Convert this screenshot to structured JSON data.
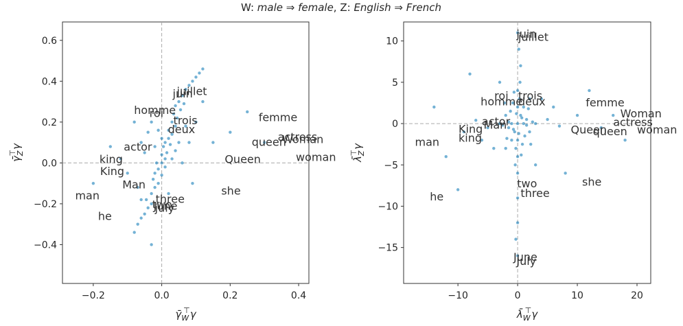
{
  "title": [
    "W: ",
    "male ⇒ female",
    ", Z: ",
    "English ⇒ French"
  ],
  "chart_data": [
    {
      "type": "scatter",
      "xlabel": {
        "base": "γ̄",
        "sub": "W",
        "sup": "⊤",
        "tail": "γ"
      },
      "ylabel": {
        "base": "γ̄",
        "sub": "Z",
        "sup": "⊤",
        "tail": "γ"
      },
      "xlim": [
        -0.29,
        0.43
      ],
      "ylim": [
        -0.59,
        0.69
      ],
      "xticks": [
        {
          "value": -0.2,
          "label": "−0.2"
        },
        {
          "value": 0,
          "label": "0.0"
        },
        0.2,
        0.4
      ],
      "yticks": [
        {
          "value": -0.4,
          "label": "−0.4"
        },
        {
          "value": -0.2,
          "label": "−0.2"
        },
        {
          "value": 0,
          "label": "0.0"
        },
        0.2,
        0.4,
        0.6
      ],
      "reflines": {
        "x": 0,
        "y": 0
      },
      "color": "#0173b2",
      "x": [
        -0.08,
        -0.07,
        -0.06,
        -0.05,
        -0.04,
        -0.045,
        -0.03,
        -0.03,
        -0.02,
        -0.025,
        -0.02,
        -0.01,
        -0.01,
        -0.015,
        0.0,
        0.0,
        0.0,
        0.005,
        0.01,
        0.01,
        0.015,
        0.02,
        0.02,
        0.025,
        0.03,
        0.03,
        0.035,
        0.04,
        0.04,
        0.045,
        0.05,
        0.055,
        0.06,
        0.065,
        0.07,
        0.08,
        0.09,
        0.1,
        0.11,
        0.12,
        -0.03,
        -0.04,
        -0.06,
        0.08,
        0.1,
        0.06,
        -0.1,
        -0.12,
        0.15,
        0.2,
        -0.15,
        0.25,
        0.3,
        -0.2,
        0.02,
        -0.05,
        0.05,
        0.0,
        -0.02,
        0.03,
        -0.01,
        0.01,
        0.04,
        -0.07,
        0.07,
        -0.03,
        -0.06,
        0.12,
        -0.08,
        0.09
      ],
      "y": [
        -0.34,
        -0.3,
        -0.27,
        -0.25,
        -0.22,
        -0.18,
        -0.2,
        -0.15,
        -0.12,
        -0.08,
        -0.05,
        -0.1,
        -0.03,
        0.0,
        -0.06,
        0.0,
        0.04,
        0.08,
        0.02,
        0.1,
        0.05,
        0.12,
        0.16,
        0.09,
        0.2,
        0.14,
        0.24,
        0.18,
        0.28,
        0.22,
        0.3,
        0.26,
        0.33,
        0.29,
        0.36,
        0.38,
        0.4,
        0.42,
        0.44,
        0.46,
        0.2,
        0.15,
        0.1,
        0.1,
        0.2,
        0.0,
        -0.05,
        0.02,
        0.1,
        0.15,
        0.08,
        0.25,
        0.1,
        -0.1,
        -0.15,
        0.05,
        0.1,
        0.12,
        0.08,
        0.02,
        0.16,
        -0.02,
        0.06,
        -0.12,
        0.18,
        -0.4,
        -0.18,
        0.3,
        0.2,
        -0.1
      ],
      "annotations": [
        {
          "text": "juillet",
          "x": 0.044,
          "y": 0.333
        },
        {
          "text": "juin",
          "x": 0.032,
          "y": 0.32
        },
        {
          "text": "homme",
          "x": -0.081,
          "y": 0.239
        },
        {
          "text": "roi",
          "x": -0.036,
          "y": 0.225
        },
        {
          "text": "trois",
          "x": 0.034,
          "y": 0.19
        },
        {
          "text": "deux",
          "x": 0.018,
          "y": 0.145
        },
        {
          "text": "femme",
          "x": 0.283,
          "y": 0.205
        },
        {
          "text": "actress",
          "x": 0.339,
          "y": 0.108
        },
        {
          "text": "Woman",
          "x": 0.352,
          "y": 0.097
        },
        {
          "text": "woman",
          "x": 0.392,
          "y": 0.01
        },
        {
          "text": "queen",
          "x": 0.263,
          "y": 0.084
        },
        {
          "text": "Queen",
          "x": 0.184,
          "y": 0.0
        },
        {
          "text": "actor",
          "x": -0.111,
          "y": 0.06
        },
        {
          "text": "king",
          "x": -0.182,
          "y": 0.0
        },
        {
          "text": "King",
          "x": -0.18,
          "y": -0.06
        },
        {
          "text": "Man",
          "x": -0.115,
          "y": -0.124
        },
        {
          "text": "man",
          "x": -0.253,
          "y": -0.178
        },
        {
          "text": "he",
          "x": -0.186,
          "y": -0.279
        },
        {
          "text": "she",
          "x": 0.174,
          "y": -0.155
        },
        {
          "text": "three",
          "x": -0.018,
          "y": -0.195
        },
        {
          "text": "two",
          "x": -0.028,
          "y": -0.222
        },
        {
          "text": "June",
          "x": -0.024,
          "y": -0.229
        },
        {
          "text": "july",
          "x": -0.02,
          "y": -0.239
        }
      ]
    },
    {
      "type": "scatter",
      "xlabel": {
        "base": "λ̄",
        "sub": "W",
        "sup": "⊤",
        "tail": "γ"
      },
      "ylabel": {
        "base": "λ̄",
        "sub": "Z",
        "sup": "⊤",
        "tail": "γ"
      },
      "xlim": [
        -19.1,
        22.3
      ],
      "ylim": [
        -19.35,
        12.3
      ],
      "xticks": [
        {
          "value": -10,
          "label": "−10"
        },
        0,
        10,
        20
      ],
      "yticks": [
        {
          "value": -15,
          "label": "−15"
        },
        {
          "value": -10,
          "label": "−10"
        },
        {
          "value": -5,
          "label": "−5"
        },
        0,
        5,
        10
      ],
      "reflines": {
        "x": 0,
        "y": 0
      },
      "color": "#0173b2",
      "x": [
        0,
        0.5,
        -0.5,
        1,
        -1,
        1.5,
        -1.5,
        0.8,
        -0.8,
        2,
        -2,
        0.3,
        -0.3,
        1.2,
        -1.2,
        0,
        0,
        2.5,
        -2.5,
        0.6,
        -0.6,
        1.8,
        -1.8,
        0.2,
        -0.2,
        1,
        -1,
        0,
        0,
        2.2,
        -2.2,
        3,
        -3,
        0.4,
        -0.4,
        0,
        0,
        0.5,
        0,
        -0.3,
        0.2,
        5,
        -5,
        7,
        -7,
        10,
        -9,
        14,
        4,
        -4,
        8,
        -8,
        12,
        -12,
        3,
        -3,
        6,
        -6,
        16,
        -14,
        1.5,
        -1.5,
        0.7,
        -0.7,
        2,
        -2,
        0,
        0,
        -10,
        18
      ],
      "y": [
        0,
        1,
        -1,
        2,
        -2,
        0.5,
        -0.5,
        -2.5,
        2.5,
        -1,
        1,
        3,
        -3,
        -1.5,
        1.5,
        4,
        -4,
        0.2,
        -0.2,
        -3.8,
        3.8,
        1.8,
        -1.8,
        -1.2,
        1.2,
        0,
        0,
        2,
        -2,
        -2.5,
        2.5,
        0,
        0,
        5,
        -5,
        -6,
        -9,
        7,
        -12,
        -14,
        9,
        0.5,
        -0.5,
        -0.3,
        0.4,
        1,
        -1,
        -0.5,
        3,
        -3,
        -6,
        6,
        4,
        -4,
        -5,
        5,
        2,
        -2,
        1,
        2,
        -0.2,
        0.2,
        0.7,
        -0.7,
        3,
        -3,
        -16,
        11,
        -8,
        -2
      ],
      "annotations": [
        {
          "text": "juin",
          "x": -0.2,
          "y": 10.4
        },
        {
          "text": "juillet",
          "x": 0.1,
          "y": 10.0
        },
        {
          "text": "roi",
          "x": -3.9,
          "y": 2.9
        },
        {
          "text": "trois",
          "x": 0.1,
          "y": 2.9
        },
        {
          "text": "homme",
          "x": -6.2,
          "y": 2.2
        },
        {
          "text": "deux",
          "x": 0.1,
          "y": 2.2
        },
        {
          "text": "femme",
          "x": 11.4,
          "y": 2.1
        },
        {
          "text": "Woman",
          "x": 17.2,
          "y": 0.75
        },
        {
          "text": "actress",
          "x": 16.0,
          "y": -0.3
        },
        {
          "text": "woman",
          "x": 20.0,
          "y": -1.2
        },
        {
          "text": "Queen",
          "x": 8.9,
          "y": -1.2
        },
        {
          "text": "queen",
          "x": 12.6,
          "y": -1.4
        },
        {
          "text": "actor",
          "x": -6.0,
          "y": -0.2
        },
        {
          "text": "Man",
          "x": -5.7,
          "y": -0.6
        },
        {
          "text": "King",
          "x": -9.9,
          "y": -1.1
        },
        {
          "text": "king",
          "x": -9.9,
          "y": -2.2
        },
        {
          "text": "man",
          "x": -17.2,
          "y": -2.7
        },
        {
          "text": "he",
          "x": -14.7,
          "y": -9.3
        },
        {
          "text": "she",
          "x": 10.8,
          "y": -7.5
        },
        {
          "text": "two",
          "x": -0.1,
          "y": -7.7
        },
        {
          "text": "three",
          "x": 0.5,
          "y": -8.9
        },
        {
          "text": "June",
          "x": -0.7,
          "y": -16.6
        },
        {
          "text": "July",
          "x": -0.2,
          "y": -17.1
        }
      ]
    }
  ]
}
